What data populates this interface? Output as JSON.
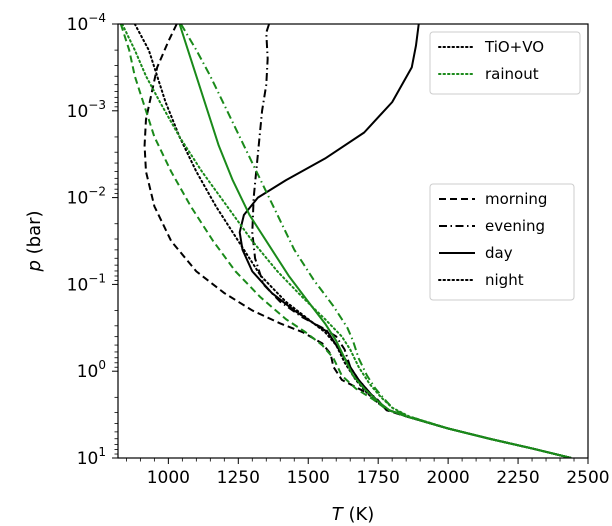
{
  "chart_data": {
    "type": "line",
    "xlabel_var": "T",
    "xlabel_unit": "(K)",
    "ylabel_var": "p",
    "ylabel_unit": "(bar)",
    "xlim": [
      820,
      2500
    ],
    "ylim_log10": [
      1,
      -4
    ],
    "yscale": "log",
    "y_inverted": true,
    "grid": false,
    "x_ticks": [
      1000,
      1250,
      1500,
      1750,
      2000,
      2250,
      2500
    ],
    "x_tick_labels": [
      "1000",
      "1250",
      "1500",
      "1750",
      "2000",
      "2250",
      "2500"
    ],
    "y_ticks": [
      -4,
      -3,
      -2,
      -1,
      0,
      1
    ],
    "y_tick_labels": [
      {
        "base": "10",
        "exp": "−4"
      },
      {
        "base": "10",
        "exp": "−3"
      },
      {
        "base": "10",
        "exp": "−2"
      },
      {
        "base": "10",
        "exp": "−1"
      },
      {
        "base": "10",
        "exp": "0"
      },
      {
        "base": "10",
        "exp": "1"
      }
    ],
    "legend_model": {
      "placement": "top-right",
      "entries": [
        {
          "label": "TiO+VO",
          "color": "#000000",
          "dash": "dotted"
        },
        {
          "label": "rainout",
          "color": "#1a8a1a",
          "dash": "dotted"
        }
      ]
    },
    "legend_limb": {
      "placement": "center-right",
      "entries": [
        {
          "label": "morning",
          "color": "#000000",
          "dash": "dashed"
        },
        {
          "label": "evening",
          "color": "#000000",
          "dash": "dashdot"
        },
        {
          "label": "day",
          "color": "#000000",
          "dash": "solid"
        },
        {
          "label": "night",
          "color": "#000000",
          "dash": "dotted"
        }
      ]
    },
    "series": [
      {
        "model": "TiO+VO",
        "limb": "day",
        "color": "#000000",
        "dash": "solid",
        "points": [
          [
            1895,
            -4
          ],
          [
            1885,
            -3.75
          ],
          [
            1870,
            -3.5
          ],
          [
            1800,
            -3.1
          ],
          [
            1700,
            -2.75
          ],
          [
            1560,
            -2.45
          ],
          [
            1420,
            -2.2
          ],
          [
            1320,
            -2.0
          ],
          [
            1270,
            -1.8
          ],
          [
            1255,
            -1.6
          ],
          [
            1265,
            -1.4
          ],
          [
            1300,
            -1.15
          ],
          [
            1370,
            -0.9
          ],
          [
            1450,
            -0.7
          ],
          [
            1520,
            -0.55
          ],
          [
            1570,
            -0.45
          ],
          [
            1590,
            -0.35
          ],
          [
            1620,
            -0.2
          ],
          [
            1650,
            -0.05
          ],
          [
            1680,
            0.1
          ],
          [
            1720,
            0.25
          ],
          [
            1760,
            0.38
          ],
          [
            1790,
            0.45
          ],
          [
            1850,
            0.52
          ],
          [
            2000,
            0.66
          ],
          [
            2150,
            0.78
          ],
          [
            2300,
            0.89
          ],
          [
            2440,
            1.0
          ]
        ]
      },
      {
        "model": "TiO+VO",
        "limb": "morning",
        "color": "#000000",
        "dash": "dashed",
        "points": [
          [
            1030,
            -4
          ],
          [
            1000,
            -3.8
          ],
          [
            960,
            -3.5
          ],
          [
            940,
            -3.2
          ],
          [
            920,
            -2.9
          ],
          [
            915,
            -2.6
          ],
          [
            920,
            -2.3
          ],
          [
            950,
            -1.9
          ],
          [
            1010,
            -1.5
          ],
          [
            1100,
            -1.15
          ],
          [
            1200,
            -0.9
          ],
          [
            1300,
            -0.7
          ],
          [
            1400,
            -0.55
          ],
          [
            1480,
            -0.45
          ],
          [
            1550,
            -0.32
          ],
          [
            1580,
            -0.2
          ],
          [
            1590,
            -0.05
          ],
          [
            1620,
            0.1
          ],
          [
            1680,
            0.2
          ],
          [
            1740,
            0.3
          ],
          [
            1780,
            0.45
          ],
          [
            1850,
            0.52
          ],
          [
            2000,
            0.66
          ],
          [
            2150,
            0.78
          ],
          [
            2300,
            0.89
          ],
          [
            2440,
            1.0
          ]
        ]
      },
      {
        "model": "TiO+VO",
        "limb": "evening",
        "color": "#000000",
        "dash": "dashdot",
        "points": [
          [
            1360,
            -4
          ],
          [
            1350,
            -3.9
          ],
          [
            1355,
            -3.6
          ],
          [
            1350,
            -3.3
          ],
          [
            1335,
            -3.0
          ],
          [
            1320,
            -2.5
          ],
          [
            1305,
            -2.0
          ],
          [
            1300,
            -1.6
          ],
          [
            1310,
            -1.3
          ],
          [
            1340,
            -1.0
          ],
          [
            1400,
            -0.8
          ],
          [
            1480,
            -0.62
          ],
          [
            1550,
            -0.5
          ],
          [
            1600,
            -0.4
          ],
          [
            1630,
            -0.25
          ],
          [
            1650,
            -0.05
          ],
          [
            1680,
            0.1
          ],
          [
            1720,
            0.25
          ],
          [
            1760,
            0.38
          ],
          [
            1790,
            0.45
          ],
          [
            1850,
            0.52
          ],
          [
            2000,
            0.66
          ],
          [
            2150,
            0.78
          ],
          [
            2300,
            0.89
          ],
          [
            2440,
            1.0
          ]
        ]
      },
      {
        "model": "TiO+VO",
        "limb": "night",
        "color": "#000000",
        "dash": "dotted",
        "points": [
          [
            880,
            -4
          ],
          [
            930,
            -3.7
          ],
          [
            960,
            -3.4
          ],
          [
            990,
            -3.1
          ],
          [
            1040,
            -2.7
          ],
          [
            1100,
            -2.3
          ],
          [
            1170,
            -1.9
          ],
          [
            1250,
            -1.5
          ],
          [
            1330,
            -1.1
          ],
          [
            1420,
            -0.8
          ],
          [
            1500,
            -0.6
          ],
          [
            1560,
            -0.45
          ],
          [
            1600,
            -0.3
          ],
          [
            1630,
            -0.1
          ],
          [
            1670,
            0.1
          ],
          [
            1710,
            0.25
          ],
          [
            1755,
            0.38
          ],
          [
            1790,
            0.45
          ],
          [
            1850,
            0.52
          ],
          [
            2000,
            0.66
          ],
          [
            2150,
            0.78
          ],
          [
            2300,
            0.89
          ],
          [
            2440,
            1.0
          ]
        ]
      },
      {
        "model": "rainout",
        "limb": "day",
        "color": "#1a8a1a",
        "dash": "solid",
        "points": [
          [
            1040,
            -4
          ],
          [
            1070,
            -3.7
          ],
          [
            1100,
            -3.4
          ],
          [
            1140,
            -3.0
          ],
          [
            1180,
            -2.6
          ],
          [
            1230,
            -2.2
          ],
          [
            1290,
            -1.8
          ],
          [
            1360,
            -1.45
          ],
          [
            1430,
            -1.1
          ],
          [
            1500,
            -0.8
          ],
          [
            1560,
            -0.55
          ],
          [
            1600,
            -0.35
          ],
          [
            1630,
            -0.15
          ],
          [
            1660,
            0.05
          ],
          [
            1700,
            0.2
          ],
          [
            1750,
            0.35
          ],
          [
            1790,
            0.45
          ],
          [
            1850,
            0.52
          ],
          [
            2000,
            0.66
          ],
          [
            2150,
            0.78
          ],
          [
            2300,
            0.89
          ],
          [
            2440,
            1.0
          ]
        ]
      },
      {
        "model": "rainout",
        "limb": "morning",
        "color": "#1a8a1a",
        "dash": "dashed",
        "points": [
          [
            830,
            -4
          ],
          [
            860,
            -3.7
          ],
          [
            880,
            -3.4
          ],
          [
            910,
            -3.1
          ],
          [
            950,
            -2.7
          ],
          [
            1010,
            -2.3
          ],
          [
            1080,
            -1.9
          ],
          [
            1160,
            -1.5
          ],
          [
            1240,
            -1.15
          ],
          [
            1330,
            -0.85
          ],
          [
            1420,
            -0.6
          ],
          [
            1490,
            -0.45
          ],
          [
            1550,
            -0.3
          ],
          [
            1590,
            -0.15
          ],
          [
            1620,
            0.05
          ],
          [
            1670,
            0.2
          ],
          [
            1730,
            0.32
          ],
          [
            1780,
            0.44
          ],
          [
            1850,
            0.52
          ],
          [
            2000,
            0.66
          ],
          [
            2150,
            0.78
          ],
          [
            2300,
            0.89
          ],
          [
            2440,
            1.0
          ]
        ]
      },
      {
        "model": "rainout",
        "limb": "evening",
        "color": "#1a8a1a",
        "dash": "dashdot",
        "points": [
          [
            1045,
            -4
          ],
          [
            1100,
            -3.7
          ],
          [
            1150,
            -3.4
          ],
          [
            1210,
            -3.0
          ],
          [
            1270,
            -2.6
          ],
          [
            1330,
            -2.2
          ],
          [
            1390,
            -1.8
          ],
          [
            1450,
            -1.4
          ],
          [
            1520,
            -1.05
          ],
          [
            1590,
            -0.75
          ],
          [
            1640,
            -0.5
          ],
          [
            1660,
            -0.35
          ],
          [
            1680,
            -0.15
          ],
          [
            1710,
            0.05
          ],
          [
            1740,
            0.2
          ],
          [
            1780,
            0.35
          ],
          [
            1810,
            0.45
          ],
          [
            1860,
            0.52
          ],
          [
            2000,
            0.66
          ],
          [
            2150,
            0.78
          ],
          [
            2300,
            0.89
          ],
          [
            2440,
            1.0
          ]
        ]
      },
      {
        "model": "rainout",
        "limb": "night",
        "color": "#1a8a1a",
        "dash": "dotted",
        "points": [
          [
            835,
            -4
          ],
          [
            880,
            -3.7
          ],
          [
            920,
            -3.4
          ],
          [
            970,
            -3.1
          ],
          [
            1040,
            -2.7
          ],
          [
            1120,
            -2.3
          ],
          [
            1210,
            -1.9
          ],
          [
            1300,
            -1.5
          ],
          [
            1390,
            -1.15
          ],
          [
            1480,
            -0.85
          ],
          [
            1560,
            -0.6
          ],
          [
            1620,
            -0.4
          ],
          [
            1650,
            -0.25
          ],
          [
            1680,
            -0.05
          ],
          [
            1720,
            0.15
          ],
          [
            1760,
            0.3
          ],
          [
            1800,
            0.42
          ],
          [
            1860,
            0.52
          ],
          [
            2000,
            0.66
          ],
          [
            2150,
            0.78
          ],
          [
            2300,
            0.89
          ],
          [
            2440,
            1.0
          ]
        ]
      }
    ]
  }
}
